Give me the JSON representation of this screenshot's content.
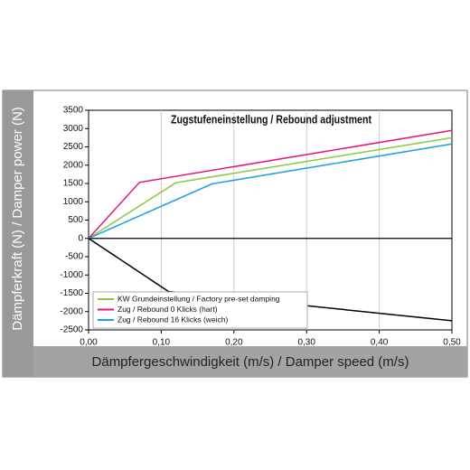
{
  "chart_data": {
    "type": "line",
    "title": "Zugstufeneinstellung / Rebound adjustment",
    "xlabel": "Dämpfergeschwindigkeit (m/s) / Damper speed (m/s)",
    "ylabel": "Dämpferkraft (N) / Damper power (N)",
    "xlim": [
      0,
      0.5
    ],
    "ylim": [
      -2500,
      3500
    ],
    "xticks": [
      {
        "value": 0,
        "label": "0,00"
      },
      {
        "value": 0.1,
        "label": "0,10"
      },
      {
        "value": 0.2,
        "label": "0,20"
      },
      {
        "value": 0.3,
        "label": "0,30"
      },
      {
        "value": 0.4,
        "label": "0,40"
      },
      {
        "value": 0.5,
        "label": "0,50"
      }
    ],
    "yticks": [
      3500,
      3000,
      2500,
      2000,
      1500,
      1000,
      500,
      0,
      -500,
      -1000,
      -1500,
      -2000,
      -2500
    ],
    "grid": "x",
    "series": [
      {
        "name": "KW Grundeinstellung / Factory pre-set damping",
        "color": "#8dc63f",
        "x": [
          0,
          0.12,
          0.5
        ],
        "values": [
          0,
          1520,
          2750
        ]
      },
      {
        "name": "Zug / Rebound 0 Klicks (hart)",
        "color": "#e6157a",
        "x": [
          0,
          0.07,
          0.5
        ],
        "values": [
          0,
          1530,
          2950
        ]
      },
      {
        "name": "Zug / Rebound 16 Klicks (weich)",
        "color": "#1ba1e2",
        "x": [
          0,
          0.17,
          0.5
        ],
        "values": [
          0,
          1490,
          2580
        ]
      },
      {
        "color": "#000000",
        "x": [
          0,
          0.11,
          0.5
        ],
        "values": [
          0,
          -1450,
          -2250
        ]
      }
    ]
  }
}
